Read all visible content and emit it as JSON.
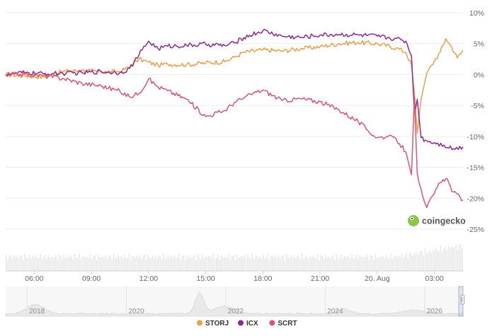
{
  "chart_data": {
    "type": "line",
    "y_unit": "%",
    "ylim": [
      -25,
      10
    ],
    "y_ticks": [
      "10%",
      "5%",
      "0%",
      "-5%",
      "-10%",
      "-15%",
      "-20%",
      "-25%"
    ],
    "y_tick_values": [
      10,
      5,
      0,
      -5,
      -10,
      -15,
      -20,
      -25
    ],
    "x_tick_labels": [
      "06:00",
      "09:00",
      "12:00",
      "15:00",
      "18:00",
      "21:00",
      "20. Aug",
      "03:00"
    ],
    "x_tick_hours": [
      6,
      9,
      12,
      15,
      18,
      21,
      24,
      27
    ],
    "xlim_hours": [
      4.5,
      28.5
    ],
    "grid": true,
    "legend_position": "bottom",
    "series": [
      {
        "name": "STORJ",
        "color": "#e8a04a",
        "x": [
          4.5,
          5.5,
          6.5,
          7.5,
          8.5,
          9.5,
          10.5,
          11.0,
          11.5,
          12.0,
          12.5,
          13.0,
          14.0,
          15.0,
          16.0,
          16.5,
          17.0,
          18.0,
          19.0,
          20.0,
          21.0,
          22.0,
          23.0,
          24.0,
          25.0,
          25.5,
          25.8,
          25.95,
          26.1,
          26.3,
          26.6,
          27.0,
          27.3,
          27.6,
          27.9,
          28.2,
          28.5
        ],
        "values": [
          0,
          -0.2,
          -0.4,
          0.5,
          0.7,
          0.4,
          0.5,
          1.2,
          2.5,
          2.0,
          1.5,
          1.7,
          1.6,
          1.9,
          2.1,
          2.8,
          3.6,
          4.0,
          3.8,
          4.2,
          4.5,
          5.0,
          5.2,
          5.0,
          4.3,
          3.6,
          1.5,
          -3.0,
          -9.5,
          -4.0,
          0.2,
          2.2,
          3.6,
          5.8,
          4.5,
          2.7,
          3.9
        ]
      },
      {
        "name": "ICX",
        "color": "#8e2a8e",
        "x": [
          4.5,
          5.5,
          6.5,
          7.5,
          8.5,
          9.5,
          10.5,
          11.0,
          11.5,
          12.0,
          12.5,
          13.0,
          14.0,
          15.0,
          16.0,
          16.5,
          17.0,
          18.0,
          19.0,
          20.0,
          21.0,
          22.0,
          23.0,
          24.0,
          25.0,
          25.5,
          25.8,
          25.95,
          26.1,
          26.3,
          26.6,
          27.0,
          27.5,
          28.0,
          28.5
        ],
        "values": [
          0,
          0.3,
          0.1,
          0.2,
          0.3,
          0.5,
          0.3,
          1.0,
          3.2,
          5.4,
          4.2,
          4.6,
          4.7,
          4.9,
          4.7,
          5.1,
          6.0,
          7.1,
          6.2,
          6.0,
          6.4,
          6.5,
          6.4,
          6.2,
          5.8,
          5.4,
          3.0,
          -6.0,
          -4.0,
          -10.2,
          -10.7,
          -11.0,
          -11.4,
          -12.0,
          -11.7
        ]
      },
      {
        "name": "SCRT",
        "color": "#d9566f",
        "x": [
          4.5,
          5.5,
          6.5,
          7.5,
          8.5,
          9.5,
          10.5,
          11.0,
          11.5,
          12.0,
          12.5,
          13.0,
          14.0,
          15.0,
          16.0,
          16.5,
          17.0,
          17.5,
          18.0,
          19.0,
          20.0,
          21.0,
          22.0,
          23.0,
          23.5,
          24.0,
          24.5,
          25.0,
          25.5,
          25.8,
          25.95,
          26.1,
          26.3,
          26.6,
          27.0,
          27.3,
          27.6,
          28.0,
          28.5
        ],
        "values": [
          0,
          0.1,
          -0.2,
          -0.6,
          -1.4,
          -1.8,
          -2.7,
          -3.6,
          -3.0,
          -0.7,
          -2.0,
          -2.6,
          -4.0,
          -6.8,
          -5.8,
          -4.5,
          -3.8,
          -3.0,
          -2.5,
          -4.2,
          -3.9,
          -4.4,
          -5.7,
          -7.6,
          -9.0,
          -10.2,
          -10.0,
          -10.5,
          -12.5,
          -16.2,
          -3.7,
          -16.0,
          -18.5,
          -21.5,
          -19.2,
          -17.5,
          -16.8,
          -19.0,
          -20.3
        ]
      }
    ],
    "navigator": {
      "x_ticks": [
        "2018",
        "2020",
        "2022",
        "2024",
        "2026"
      ],
      "x_tick_years": [
        2018,
        2020,
        2022,
        2024,
        2026
      ],
      "xlim_years": [
        2017.4,
        2026.6
      ]
    },
    "volume_color": "#e6e6e6",
    "watermark": "coingecko"
  }
}
